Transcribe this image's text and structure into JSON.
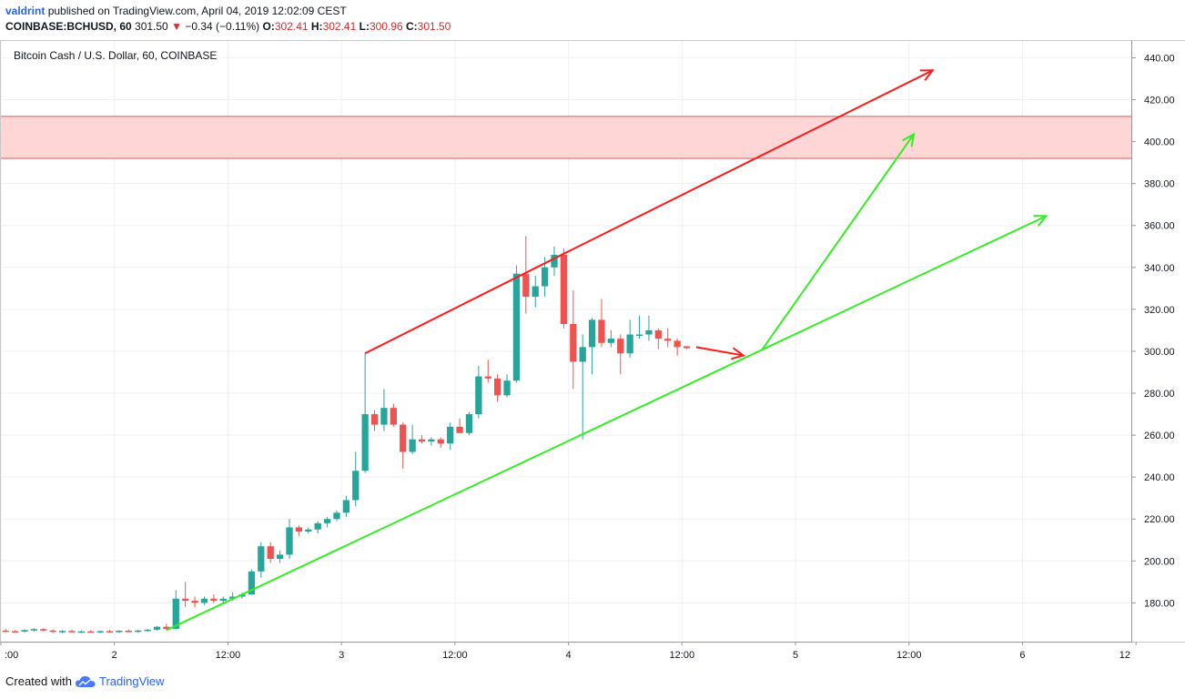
{
  "header": {
    "author": "valdrint",
    "published_text": "published on TradingView.com, April 04, 2019 12:02:09 CEST"
  },
  "symbol_bar": {
    "symbol": "COINBASE:BCHUSD, 60",
    "last": "301.50",
    "change_arrow": "▼",
    "change": "−0.34 (−0.11%)",
    "o_label": "O:",
    "o_value": "302.41",
    "h_label": "H:",
    "h_value": "302.41",
    "l_label": "L:",
    "l_value": "300.96",
    "c_label": "C:",
    "c_value": "301.50"
  },
  "footer": {
    "created_with": "Created with",
    "brand": "TradingView",
    "logo_icon": "tradingview-cloud-icon"
  },
  "colors": {
    "up": "#26a69a",
    "down": "#ef5350",
    "zone_fill": "#ffd6d6",
    "zone_border": "#e05a5a",
    "red_line": "#ff1a1a",
    "green_line": "#33ee22"
  },
  "chart_data": {
    "type": "candlestick",
    "title": "Bitcoin Cash / U.S. Dollar, 60, COINBASE",
    "y_axis": {
      "ticks": [
        180,
        200,
        220,
        240,
        260,
        280,
        300,
        320,
        340,
        360,
        380,
        400,
        420,
        440
      ],
      "tick_labels": [
        "180.00",
        "200.00",
        "220.00",
        "240.00",
        "260.00",
        "280.00",
        "300.00",
        "320.00",
        "340.00",
        "360.00",
        "380.00",
        "400.00",
        "420.00",
        "440.00"
      ],
      "range": [
        161.5,
        448
      ]
    },
    "x_axis": {
      "ticks": [
        0,
        12,
        24,
        36,
        48,
        60,
        72,
        84,
        96,
        108,
        120
      ],
      "tick_labels": [
        ":00",
        "2",
        "12:00",
        "3",
        "12:00",
        "4",
        "12:00",
        "5",
        "12:00",
        "6",
        "12"
      ],
      "unit": "hours from April 1 12:00",
      "range": [
        0,
        119.5
      ]
    },
    "grid": true,
    "resistance_zone": [
      392,
      412
    ],
    "candles": [
      {
        "t": 0.5,
        "o": 166.8,
        "h": 167.5,
        "l": 166,
        "c": 166.5
      },
      {
        "t": 1.5,
        "o": 166.5,
        "h": 167,
        "l": 165.8,
        "c": 166.3
      },
      {
        "t": 2.5,
        "o": 166.3,
        "h": 167.4,
        "l": 165.9,
        "c": 167
      },
      {
        "t": 3.5,
        "o": 167,
        "h": 168,
        "l": 166.4,
        "c": 167.5
      },
      {
        "t": 4.5,
        "o": 167.5,
        "h": 168,
        "l": 166.5,
        "c": 166.8
      },
      {
        "t": 5.5,
        "o": 166.8,
        "h": 167.3,
        "l": 165.8,
        "c": 166.2
      },
      {
        "t": 6.5,
        "o": 166.2,
        "h": 167,
        "l": 165.6,
        "c": 166.6
      },
      {
        "t": 7.5,
        "o": 166.6,
        "h": 167.2,
        "l": 166,
        "c": 166.1
      },
      {
        "t": 8.5,
        "o": 166.1,
        "h": 166.9,
        "l": 165.6,
        "c": 166.4
      },
      {
        "t": 9.5,
        "o": 166.4,
        "h": 167,
        "l": 165.9,
        "c": 166
      },
      {
        "t": 10.5,
        "o": 166,
        "h": 166.8,
        "l": 165.5,
        "c": 166.5
      },
      {
        "t": 11.5,
        "o": 166.5,
        "h": 167.1,
        "l": 165.9,
        "c": 166.2
      },
      {
        "t": 12.5,
        "o": 166.2,
        "h": 167,
        "l": 165.7,
        "c": 166.7
      },
      {
        "t": 13.5,
        "o": 166.7,
        "h": 167.3,
        "l": 166,
        "c": 166.3
      },
      {
        "t": 14.5,
        "o": 166.3,
        "h": 167.2,
        "l": 165.8,
        "c": 166.8
      },
      {
        "t": 15.5,
        "o": 166.8,
        "h": 167.5,
        "l": 166.2,
        "c": 167.2
      },
      {
        "t": 16.5,
        "o": 167.2,
        "h": 169,
        "l": 166.8,
        "c": 168.6
      },
      {
        "t": 17.5,
        "o": 168.6,
        "h": 170,
        "l": 167,
        "c": 167.6
      },
      {
        "t": 18.5,
        "o": 167.6,
        "h": 186,
        "l": 167.3,
        "c": 182
      },
      {
        "t": 19.5,
        "o": 182,
        "h": 190,
        "l": 178,
        "c": 181
      },
      {
        "t": 20.5,
        "o": 181,
        "h": 183,
        "l": 178,
        "c": 180
      },
      {
        "t": 21.5,
        "o": 180,
        "h": 183,
        "l": 179,
        "c": 182
      },
      {
        "t": 22.5,
        "o": 182,
        "h": 184,
        "l": 180,
        "c": 181
      },
      {
        "t": 23.5,
        "o": 181,
        "h": 183,
        "l": 180,
        "c": 182
      },
      {
        "t": 24.5,
        "o": 182,
        "h": 185,
        "l": 181,
        "c": 183
      },
      {
        "t": 25.5,
        "o": 183,
        "h": 185,
        "l": 182,
        "c": 184
      },
      {
        "t": 26.5,
        "o": 184,
        "h": 196,
        "l": 184,
        "c": 195
      },
      {
        "t": 27.5,
        "o": 195,
        "h": 209,
        "l": 192,
        "c": 207
      },
      {
        "t": 28.5,
        "o": 207,
        "h": 209,
        "l": 199,
        "c": 201
      },
      {
        "t": 29.5,
        "o": 201,
        "h": 205,
        "l": 199,
        "c": 203
      },
      {
        "t": 30.5,
        "o": 203,
        "h": 220,
        "l": 201,
        "c": 216
      },
      {
        "t": 31.5,
        "o": 216,
        "h": 217,
        "l": 212,
        "c": 214
      },
      {
        "t": 32.5,
        "o": 214,
        "h": 216,
        "l": 213,
        "c": 215
      },
      {
        "t": 33.5,
        "o": 215,
        "h": 219,
        "l": 213,
        "c": 218
      },
      {
        "t": 34.5,
        "o": 218,
        "h": 221,
        "l": 216,
        "c": 220
      },
      {
        "t": 35.5,
        "o": 220,
        "h": 224,
        "l": 219,
        "c": 223
      },
      {
        "t": 36.5,
        "o": 223,
        "h": 231,
        "l": 221,
        "c": 229
      },
      {
        "t": 37.5,
        "o": 229,
        "h": 252,
        "l": 226,
        "c": 243
      },
      {
        "t": 38.5,
        "o": 243,
        "h": 299,
        "l": 242,
        "c": 270
      },
      {
        "t": 39.5,
        "o": 270,
        "h": 272,
        "l": 262,
        "c": 265
      },
      {
        "t": 40.5,
        "o": 265,
        "h": 282,
        "l": 262,
        "c": 273
      },
      {
        "t": 41.5,
        "o": 273,
        "h": 275,
        "l": 264,
        "c": 265
      },
      {
        "t": 42.5,
        "o": 265,
        "h": 266,
        "l": 244,
        "c": 252
      },
      {
        "t": 43.5,
        "o": 252,
        "h": 265,
        "l": 251,
        "c": 258
      },
      {
        "t": 44.5,
        "o": 258,
        "h": 260,
        "l": 256,
        "c": 257
      },
      {
        "t": 45.5,
        "o": 257,
        "h": 259,
        "l": 255,
        "c": 258
      },
      {
        "t": 46.5,
        "o": 258,
        "h": 259,
        "l": 254,
        "c": 256
      },
      {
        "t": 47.5,
        "o": 256,
        "h": 266,
        "l": 253,
        "c": 264
      },
      {
        "t": 48.5,
        "o": 264,
        "h": 268,
        "l": 262,
        "c": 261
      },
      {
        "t": 49.5,
        "o": 261,
        "h": 271,
        "l": 260,
        "c": 270
      },
      {
        "t": 50.5,
        "o": 270,
        "h": 293,
        "l": 268,
        "c": 288
      },
      {
        "t": 51.5,
        "o": 288,
        "h": 296,
        "l": 285,
        "c": 287
      },
      {
        "t": 52.5,
        "o": 287,
        "h": 289,
        "l": 276,
        "c": 279
      },
      {
        "t": 53.5,
        "o": 279,
        "h": 289,
        "l": 278,
        "c": 286
      },
      {
        "t": 54.5,
        "o": 286,
        "h": 341,
        "l": 285,
        "c": 337
      },
      {
        "t": 55.5,
        "o": 337,
        "h": 355,
        "l": 318,
        "c": 326
      },
      {
        "t": 56.5,
        "o": 326,
        "h": 336,
        "l": 321,
        "c": 331
      },
      {
        "t": 57.5,
        "o": 331,
        "h": 345,
        "l": 326,
        "c": 340
      },
      {
        "t": 58.5,
        "o": 340,
        "h": 350,
        "l": 336,
        "c": 346
      },
      {
        "t": 59.5,
        "o": 346,
        "h": 349,
        "l": 311,
        "c": 313
      },
      {
        "t": 60.5,
        "o": 313,
        "h": 329,
        "l": 282,
        "c": 295
      },
      {
        "t": 61.5,
        "o": 295,
        "h": 308,
        "l": 258,
        "c": 302
      },
      {
        "t": 62.5,
        "o": 302,
        "h": 316,
        "l": 289,
        "c": 315
      },
      {
        "t": 63.5,
        "o": 315,
        "h": 325,
        "l": 302,
        "c": 304
      },
      {
        "t": 64.5,
        "o": 304,
        "h": 310,
        "l": 302,
        "c": 306
      },
      {
        "t": 65.5,
        "o": 306,
        "h": 308,
        "l": 289,
        "c": 299
      },
      {
        "t": 66.5,
        "o": 299,
        "h": 315,
        "l": 297,
        "c": 308
      },
      {
        "t": 67.5,
        "o": 308,
        "h": 317,
        "l": 306,
        "c": 308
      },
      {
        "t": 68.5,
        "o": 308,
        "h": 317,
        "l": 305,
        "c": 310
      },
      {
        "t": 69.5,
        "o": 310,
        "h": 311,
        "l": 301,
        "c": 306
      },
      {
        "t": 70.5,
        "o": 306,
        "h": 311,
        "l": 302,
        "c": 305
      },
      {
        "t": 71.5,
        "o": 305,
        "h": 306,
        "l": 298,
        "c": 302
      },
      {
        "t": 72.5,
        "o": 302.4,
        "h": 302.4,
        "l": 301,
        "c": 301.5
      }
    ],
    "drawings": [
      {
        "name": "resistance-trendline",
        "color": "red",
        "x1": 38.5,
        "y1": 299,
        "x2": 59.5,
        "y2": 346.5,
        "arrow": false
      },
      {
        "name": "upper-projection-arrow",
        "color": "red",
        "x1": 59.5,
        "y1": 346.5,
        "x2": 98.5,
        "y2": 434,
        "arrow": true
      },
      {
        "name": "short-term-arrow",
        "color": "red",
        "x1": 73.5,
        "y1": 302,
        "x2": 78.5,
        "y2": 298,
        "arrow": true
      },
      {
        "name": "support-trendline",
        "color": "green",
        "x1": 17.5,
        "y1": 167,
        "x2": 110.5,
        "y2": 364.5,
        "arrow": true
      },
      {
        "name": "breakout-arrow",
        "color": "green",
        "x1": 80.5,
        "y1": 301,
        "x2": 96.5,
        "y2": 403.5,
        "arrow": true
      }
    ]
  }
}
